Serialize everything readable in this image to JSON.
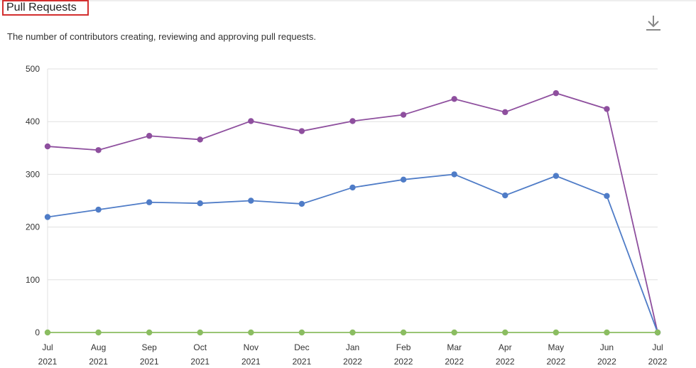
{
  "header": {
    "title": "Pull Requests",
    "subtitle": "The number of contributors creating, reviewing and approving pull requests.",
    "download_icon": "download-icon"
  },
  "colors": {
    "purple": "#8e4f9e",
    "blue": "#4f7cc7",
    "green": "#8bbd61",
    "grid": "#e0e0e0",
    "highlight_border": "#d32f2f"
  },
  "chart_data": {
    "type": "line",
    "categories": [
      [
        "Jul",
        "2021"
      ],
      [
        "Aug",
        "2021"
      ],
      [
        "Sep",
        "2021"
      ],
      [
        "Oct",
        "2021"
      ],
      [
        "Nov",
        "2021"
      ],
      [
        "Dec",
        "2021"
      ],
      [
        "Jan",
        "2022"
      ],
      [
        "Feb",
        "2022"
      ],
      [
        "Mar",
        "2022"
      ],
      [
        "Apr",
        "2022"
      ],
      [
        "May",
        "2022"
      ],
      [
        "Jun",
        "2022"
      ],
      [
        "Jul",
        "2022"
      ]
    ],
    "series": [
      {
        "color": "#8e4f9e",
        "values": [
          353,
          346,
          373,
          366,
          401,
          382,
          401,
          413,
          443,
          418,
          454,
          424,
          0
        ]
      },
      {
        "color": "#4f7cc7",
        "values": [
          219,
          233,
          247,
          245,
          250,
          244,
          275,
          290,
          300,
          260,
          297,
          259,
          0
        ]
      },
      {
        "color": "#8bbd61",
        "values": [
          0,
          0,
          0,
          0,
          0,
          0,
          0,
          0,
          0,
          0,
          0,
          0,
          0
        ]
      }
    ],
    "yticks": [
      "0",
      "100",
      "200",
      "300",
      "400",
      "500"
    ],
    "ylim": [
      0,
      500
    ],
    "grid": true
  }
}
